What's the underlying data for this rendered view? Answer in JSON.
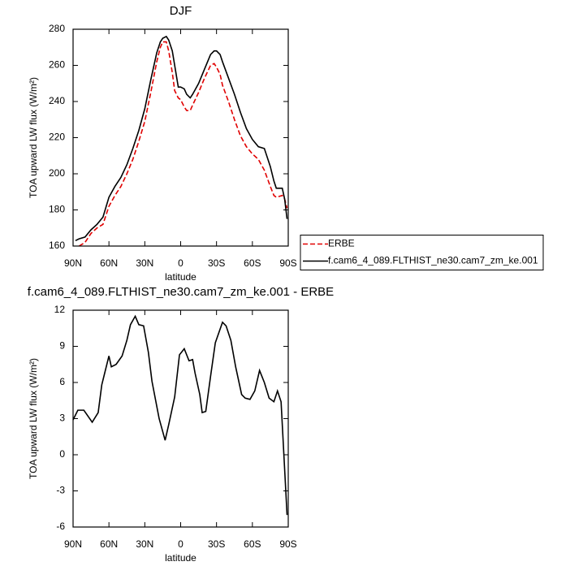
{
  "chart_data": [
    {
      "type": "line",
      "title": "DJF",
      "xlabel": "latitude",
      "ylabel": "TOA upward LW flux (W/m²)",
      "x": [
        88,
        85,
        80,
        75,
        70,
        65,
        60,
        55,
        50,
        45,
        40,
        35,
        30,
        25,
        20,
        17,
        15,
        12,
        10,
        7,
        5,
        2,
        0,
        -3,
        -5,
        -8,
        -10,
        -15,
        -20,
        -25,
        -28,
        -30,
        -33,
        -35,
        -40,
        -45,
        -50,
        -55,
        -60,
        -65,
        -70,
        -75,
        -78,
        -80,
        -85,
        -87,
        -89
      ],
      "series": [
        {
          "name": "ERBE",
          "color": "#e00000",
          "dash": true,
          "values": [
            null,
            160,
            162,
            167,
            170,
            172,
            182,
            188,
            193,
            200,
            208,
            218,
            229,
            245,
            262,
            270,
            273,
            273,
            268,
            256,
            246,
            242,
            241,
            237,
            235,
            235,
            238,
            245,
            253,
            260,
            261,
            259,
            255,
            249,
            240,
            230,
            221,
            215,
            211,
            208,
            202,
            193,
            188,
            187,
            188,
            186,
            181
          ]
        },
        {
          "name": "f.cam6_4_089.FLTHIST_ne30.cam7_zm_ke.001",
          "color": "#000000",
          "dash": false,
          "values": [
            163,
            164,
            165,
            169,
            172,
            176,
            187,
            193,
            198,
            205,
            214,
            224,
            236,
            252,
            267,
            273,
            275,
            276,
            274,
            268,
            260,
            248,
            248,
            247,
            244,
            242,
            244,
            250,
            258,
            266,
            268,
            268,
            266,
            262,
            253,
            244,
            234,
            225,
            219,
            215,
            214,
            204,
            196,
            192,
            192,
            186,
            175
          ]
        }
      ],
      "xlim": [
        90,
        -90
      ],
      "ylim": [
        160,
        280
      ],
      "xticks": [
        {
          "value": 90,
          "label": "90N"
        },
        {
          "value": 60,
          "label": "60N"
        },
        {
          "value": 30,
          "label": "30N"
        },
        0,
        {
          "value": -30,
          "label": "30S"
        },
        {
          "value": -60,
          "label": "60S"
        },
        {
          "value": -90,
          "label": "90S"
        }
      ],
      "yticks": [
        160,
        180,
        200,
        220,
        240,
        260,
        280
      ],
      "legend": "right"
    },
    {
      "type": "line",
      "title": "f.cam6_4_089.FLTHIST_ne30.cam7_zm_ke.001 - ERBE",
      "xlabel": "latitude",
      "ylabel": "TOA upward LW flux (W/m²)",
      "x": [
        90,
        86,
        81,
        74,
        69,
        66,
        60,
        58,
        54,
        49,
        45,
        42,
        38,
        35,
        31,
        27,
        24,
        18,
        13,
        10,
        5,
        1,
        -3,
        -7,
        -10,
        -12,
        -16,
        -18,
        -21,
        -25,
        -29,
        -35,
        -38,
        -42,
        -46,
        -51,
        -54,
        -58,
        -62,
        -66,
        -70,
        -74,
        -78,
        -81,
        -84,
        -89
      ],
      "series": [
        {
          "color": "#000000",
          "dash": false,
          "values": [
            2.9,
            3.7,
            3.7,
            2.7,
            3.5,
            5.8,
            8.2,
            7.3,
            7.5,
            8.2,
            9.5,
            10.8,
            11.5,
            10.8,
            10.7,
            8.5,
            6.1,
            3.0,
            1.2,
            2.5,
            4.8,
            8.3,
            8.8,
            7.8,
            7.9,
            6.8,
            5.0,
            3.5,
            3.6,
            6.5,
            9.3,
            11.0,
            10.7,
            9.5,
            7.3,
            5.0,
            4.7,
            4.6,
            5.3,
            7.0,
            6.0,
            4.7,
            4.4,
            5.3,
            4.4,
            -5.0
          ]
        }
      ],
      "xlim": [
        90,
        -90
      ],
      "ylim": [
        -6,
        12
      ],
      "xticks": [
        {
          "value": 90,
          "label": "90N"
        },
        {
          "value": 60,
          "label": "60N"
        },
        {
          "value": 30,
          "label": "30N"
        },
        0,
        {
          "value": -30,
          "label": "30S"
        },
        {
          "value": -60,
          "label": "60S"
        },
        {
          "value": -90,
          "label": "90S"
        }
      ],
      "yticks": [
        -6,
        -3,
        0,
        3,
        6,
        9,
        12
      ]
    }
  ]
}
